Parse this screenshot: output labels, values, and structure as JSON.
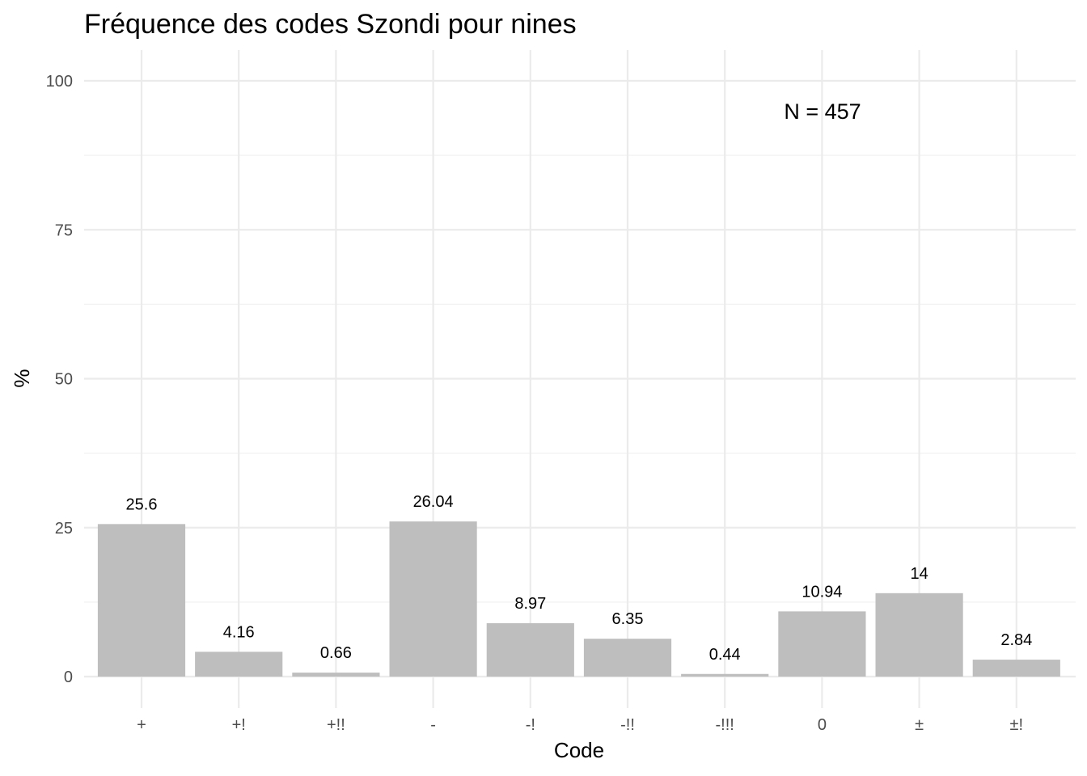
{
  "chart_data": {
    "type": "bar",
    "title": "Fréquence des codes Szondi pour nines",
    "xlabel": "Code",
    "ylabel": "%",
    "categories": [
      "+",
      "+!",
      "+!!",
      "-",
      "-!",
      "-!!",
      "-!!!",
      "0",
      "±",
      "±!"
    ],
    "values": [
      25.6,
      4.16,
      0.66,
      26.04,
      8.97,
      6.35,
      0.44,
      10.94,
      14,
      2.84
    ],
    "data_labels": [
      "25.6",
      "4.16",
      "0.66",
      "26.04",
      "8.97",
      "6.35",
      "0.44",
      "10.94",
      "14",
      "2.84"
    ],
    "ylim": [
      0,
      100
    ],
    "yticks": [
      0,
      25,
      50,
      75,
      100
    ],
    "grid": true,
    "legend": "none",
    "bar_color": "#bebebe",
    "annotation": "N = 457"
  }
}
